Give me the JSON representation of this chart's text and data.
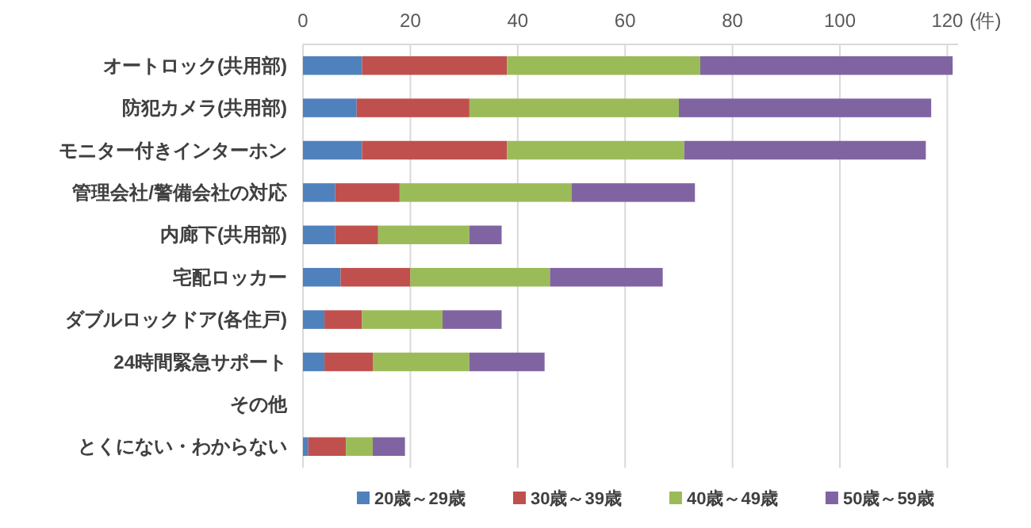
{
  "chart_data": {
    "type": "bar",
    "orientation": "horizontal",
    "stacked": true,
    "xlabel": "(件)",
    "categories": [
      "オートロック(共用部)",
      "防犯カメラ(共用部)",
      "モニター付きインターホン",
      "管理会社/警備会社の対応",
      "内廊下(共用部)",
      "宅配ロッカー",
      "ダブルロックドア(各住戸)",
      "24時間緊急サポート",
      "その他",
      "とくにない・わからない"
    ],
    "series": [
      {
        "name": "20歳～29歳",
        "color": "#4f81bd",
        "values": [
          11,
          10,
          11,
          6,
          6,
          7,
          4,
          4,
          0,
          1
        ]
      },
      {
        "name": "30歳～39歳",
        "color": "#c0504d",
        "values": [
          27,
          21,
          27,
          12,
          8,
          13,
          7,
          9,
          0,
          7
        ]
      },
      {
        "name": "40歳～49歳",
        "color": "#9bbb59",
        "values": [
          36,
          39,
          33,
          32,
          17,
          26,
          15,
          18,
          0,
          5
        ]
      },
      {
        "name": "50歳～59歳",
        "color": "#8064a2",
        "values": [
          47,
          47,
          45,
          23,
          6,
          21,
          11,
          14,
          0,
          6
        ]
      }
    ],
    "xlim": [
      0,
      122
    ],
    "xticks": [
      0,
      20,
      40,
      60,
      80,
      100,
      120
    ],
    "grid": "x",
    "legend": "bottom"
  }
}
